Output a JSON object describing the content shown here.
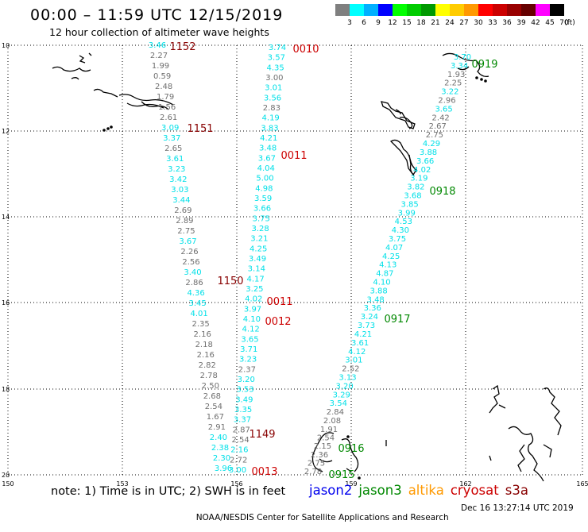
{
  "header": {
    "title": "00:00 – 11:59 UTC 12/15/2019",
    "subtitle": "12 hour collection of altimeter wave heights"
  },
  "legend": {
    "unit": "(ft)",
    "bins": [
      {
        "label": "3",
        "color": "#7f7f7f"
      },
      {
        "label": "6",
        "color": "#00ffff"
      },
      {
        "label": "9",
        "color": "#00b0ff"
      },
      {
        "label": "12",
        "color": "#0000ff"
      },
      {
        "label": "15",
        "color": "#00ff00"
      },
      {
        "label": "18",
        "color": "#00cc00"
      },
      {
        "label": "21",
        "color": "#009900"
      },
      {
        "label": "24",
        "color": "#ffff00"
      },
      {
        "label": "27",
        "color": "#ffcc00"
      },
      {
        "label": "30",
        "color": "#ff9900"
      },
      {
        "label": "33",
        "color": "#ff0000"
      },
      {
        "label": "36",
        "color": "#cc0000"
      },
      {
        "label": "39",
        "color": "#990000"
      },
      {
        "label": "42",
        "color": "#660000"
      },
      {
        "label": "45",
        "color": "#ff00ff"
      },
      {
        "label": "70",
        "color": "#000000"
      }
    ]
  },
  "axes": {
    "lat_labels": [
      "10",
      "12",
      "14",
      "16",
      "18",
      "20"
    ],
    "lon_labels": [
      "150",
      "153",
      "156",
      "159",
      "162",
      "165"
    ]
  },
  "colors": {
    "gray": "#6f6f6f",
    "cyan": "#00e0e8",
    "jason2": "#0000ee",
    "jason3": "#008800",
    "altika": "#ff9900",
    "cryosat": "#cc0000",
    "s3a": "#880000"
  },
  "tracks": [
    {
      "points": [
        {
          "v": "3.46",
          "c": "cyan"
        },
        {
          "v": "2.27",
          "c": "gray"
        },
        {
          "v": "1.99",
          "c": "gray"
        },
        {
          "v": "0.59",
          "c": "gray"
        },
        {
          "v": "2.48",
          "c": "gray"
        },
        {
          "v": "1.79",
          "c": "gray"
        },
        {
          "v": "1.56",
          "c": "gray"
        },
        {
          "v": "2.61",
          "c": "gray"
        },
        {
          "v": "3.09",
          "c": "cyan"
        },
        {
          "v": "3.37",
          "c": "cyan"
        },
        {
          "v": "2.65",
          "c": "gray"
        },
        {
          "v": "3.61",
          "c": "cyan"
        },
        {
          "v": "3.23",
          "c": "cyan"
        },
        {
          "v": "3.42",
          "c": "cyan"
        },
        {
          "v": "3.03",
          "c": "cyan"
        },
        {
          "v": "3.44",
          "c": "cyan"
        },
        {
          "v": "2.69",
          "c": "gray"
        },
        {
          "v": "2.89",
          "c": "gray"
        },
        {
          "v": "2.75",
          "c": "gray"
        },
        {
          "v": "3.67",
          "c": "cyan"
        },
        {
          "v": "2.26",
          "c": "gray"
        },
        {
          "v": "2.56",
          "c": "gray"
        },
        {
          "v": "3.40",
          "c": "cyan"
        },
        {
          "v": "2.86",
          "c": "gray"
        },
        {
          "v": "4.36",
          "c": "cyan"
        },
        {
          "v": "3.45",
          "c": "cyan"
        },
        {
          "v": "4.01",
          "c": "cyan"
        },
        {
          "v": "2.35",
          "c": "gray"
        },
        {
          "v": "2.16",
          "c": "gray"
        },
        {
          "v": "2.18",
          "c": "gray"
        },
        {
          "v": "2.16",
          "c": "gray"
        },
        {
          "v": "2.82",
          "c": "gray"
        },
        {
          "v": "2.78",
          "c": "gray"
        },
        {
          "v": "2.50",
          "c": "gray"
        },
        {
          "v": "2.68",
          "c": "gray"
        },
        {
          "v": "2.54",
          "c": "gray"
        },
        {
          "v": "1.67",
          "c": "gray"
        },
        {
          "v": "2.91",
          "c": "gray"
        },
        {
          "v": "2.40",
          "c": "cyan"
        },
        {
          "v": "2.38",
          "c": "cyan"
        },
        {
          "v": "2.30",
          "c": "cyan"
        },
        {
          "v": "3.96",
          "c": "cyan"
        }
      ]
    },
    {
      "points": [
        {
          "v": "3.74",
          "c": "cyan"
        },
        {
          "v": "3.57",
          "c": "cyan"
        },
        {
          "v": "4.35",
          "c": "cyan"
        },
        {
          "v": "3.00",
          "c": "gray"
        },
        {
          "v": "3.01",
          "c": "cyan"
        },
        {
          "v": "3.56",
          "c": "cyan"
        },
        {
          "v": "2.83",
          "c": "gray"
        },
        {
          "v": "4.19",
          "c": "cyan"
        },
        {
          "v": "3.83",
          "c": "cyan"
        },
        {
          "v": "4.21",
          "c": "cyan"
        },
        {
          "v": "3.48",
          "c": "cyan"
        },
        {
          "v": "3.67",
          "c": "cyan"
        },
        {
          "v": "4.04",
          "c": "cyan"
        },
        {
          "v": "5.00",
          "c": "cyan"
        },
        {
          "v": "4.98",
          "c": "cyan"
        },
        {
          "v": "3.59",
          "c": "cyan"
        },
        {
          "v": "3.66",
          "c": "cyan"
        },
        {
          "v": "3.75",
          "c": "cyan"
        },
        {
          "v": "3.28",
          "c": "cyan"
        },
        {
          "v": "3.21",
          "c": "cyan"
        },
        {
          "v": "4.25",
          "c": "cyan"
        },
        {
          "v": "3.49",
          "c": "cyan"
        },
        {
          "v": "3.14",
          "c": "cyan"
        },
        {
          "v": "4.17",
          "c": "cyan"
        },
        {
          "v": "3.25",
          "c": "cyan"
        },
        {
          "v": "4.02",
          "c": "cyan"
        },
        {
          "v": "3.97",
          "c": "cyan"
        },
        {
          "v": "4.10",
          "c": "cyan"
        },
        {
          "v": "4.12",
          "c": "cyan"
        },
        {
          "v": "3.65",
          "c": "cyan"
        },
        {
          "v": "3.71",
          "c": "cyan"
        },
        {
          "v": "3.23",
          "c": "cyan"
        },
        {
          "v": "2.37",
          "c": "gray"
        },
        {
          "v": "3.20",
          "c": "cyan"
        },
        {
          "v": "3.53",
          "c": "cyan"
        },
        {
          "v": "3.49",
          "c": "cyan"
        },
        {
          "v": "3.35",
          "c": "cyan"
        },
        {
          "v": "3.37",
          "c": "cyan"
        },
        {
          "v": "2.87",
          "c": "gray"
        },
        {
          "v": "2.54",
          "c": "gray"
        },
        {
          "v": "2.16",
          "c": "cyan"
        },
        {
          "v": "2.72",
          "c": "gray"
        },
        {
          "v": "3.00",
          "c": "cyan"
        }
      ]
    },
    {
      "points": [
        {
          "v": "1.91",
          "c": "gray"
        },
        {
          "v": "2.54",
          "c": "gray"
        },
        {
          "v": "2.15",
          "c": "gray"
        },
        {
          "v": "2.36",
          "c": "gray"
        },
        {
          "v": "2.75",
          "c": "gray"
        },
        {
          "v": "2.78",
          "c": "gray"
        }
      ]
    },
    {
      "points": [
        {
          "v": "3.70",
          "c": "cyan"
        },
        {
          "v": "3.34",
          "c": "cyan"
        },
        {
          "v": "1.93",
          "c": "gray"
        },
        {
          "v": "2.25",
          "c": "gray"
        },
        {
          "v": "3.22",
          "c": "cyan"
        },
        {
          "v": "2.96",
          "c": "gray"
        },
        {
          "v": "3.65",
          "c": "cyan"
        },
        {
          "v": "2.42",
          "c": "gray"
        },
        {
          "v": "2.67",
          "c": "gray"
        },
        {
          "v": "2.75",
          "c": "gray"
        },
        {
          "v": "4.29",
          "c": "cyan"
        },
        {
          "v": "3.88",
          "c": "cyan"
        },
        {
          "v": "3.66",
          "c": "cyan"
        },
        {
          "v": "4.02",
          "c": "cyan"
        },
        {
          "v": "3.19",
          "c": "cyan"
        },
        {
          "v": "3.82",
          "c": "cyan"
        },
        {
          "v": "3.68",
          "c": "cyan"
        },
        {
          "v": "3.85",
          "c": "cyan"
        },
        {
          "v": "3.99",
          "c": "cyan"
        },
        {
          "v": "4.53",
          "c": "cyan"
        },
        {
          "v": "4.30",
          "c": "cyan"
        },
        {
          "v": "3.75",
          "c": "cyan"
        },
        {
          "v": "4.07",
          "c": "cyan"
        },
        {
          "v": "4.25",
          "c": "cyan"
        },
        {
          "v": "4.13",
          "c": "cyan"
        },
        {
          "v": "4.87",
          "c": "cyan"
        },
        {
          "v": "4.10",
          "c": "cyan"
        },
        {
          "v": "3.88",
          "c": "cyan"
        },
        {
          "v": "3.48",
          "c": "cyan"
        },
        {
          "v": "3.36",
          "c": "cyan"
        },
        {
          "v": "3.24",
          "c": "cyan"
        },
        {
          "v": "3.73",
          "c": "cyan"
        },
        {
          "v": "4.21",
          "c": "cyan"
        },
        {
          "v": "3.61",
          "c": "cyan"
        },
        {
          "v": "4.12",
          "c": "cyan"
        },
        {
          "v": "3.01",
          "c": "cyan"
        },
        {
          "v": "2.52",
          "c": "gray"
        },
        {
          "v": "3.13",
          "c": "cyan"
        },
        {
          "v": "3.20",
          "c": "cyan"
        },
        {
          "v": "3.29",
          "c": "cyan"
        },
        {
          "v": "3.54",
          "c": "cyan"
        },
        {
          "v": "2.84",
          "c": "gray"
        },
        {
          "v": "2.08",
          "c": "gray"
        }
      ]
    }
  ],
  "time_tags": [
    {
      "t": "1152",
      "c": "s3a"
    },
    {
      "t": "1151",
      "c": "s3a"
    },
    {
      "t": "1150",
      "c": "s3a"
    },
    {
      "t": "1149",
      "c": "s3a"
    },
    {
      "t": "0010",
      "c": "cryosat"
    },
    {
      "t": "0011",
      "c": "cryosat"
    },
    {
      "t": "0011",
      "c": "cryosat"
    },
    {
      "t": "0012",
      "c": "cryosat"
    },
    {
      "t": "0013",
      "c": "cryosat"
    },
    {
      "t": "0919",
      "c": "jason3"
    },
    {
      "t": "0918",
      "c": "jason3"
    },
    {
      "t": "0917",
      "c": "jason3"
    },
    {
      "t": "0916",
      "c": "jason3"
    },
    {
      "t": "0915",
      "c": "jason3"
    }
  ],
  "footer": {
    "note": "note: 1) Time is in UTC; 2) SWH is in feet",
    "sats": [
      "jason2",
      "jason3",
      "altika",
      "cryosat",
      "s3a"
    ],
    "credit": "NOAA/NESDIS Center for Satellite Applications and Research",
    "timestamp": "Dec 16 13:27:14 UTC 2019"
  }
}
